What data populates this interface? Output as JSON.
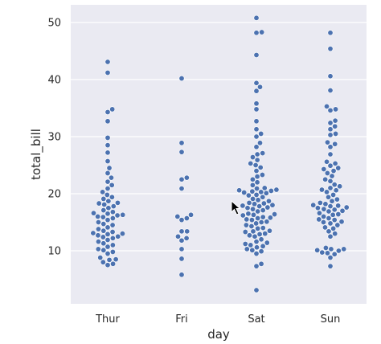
{
  "chart_data": {
    "type": "scatter",
    "subtype": "swarm",
    "style": "seaborn-darkgrid",
    "xlabel": "day",
    "ylabel": "total_bill",
    "categories": [
      "Thur",
      "Fri",
      "Sat",
      "Sun"
    ],
    "ylim": [
      0,
      53
    ],
    "yticks": [
      10,
      20,
      30,
      40,
      50
    ],
    "grid": true,
    "point_color": "#4c72b0",
    "background_color": "#eaeaf2",
    "series": [
      {
        "category": "Thur",
        "values": [
          7.5,
          7.7,
          8.0,
          8.4,
          8.5,
          8.8,
          9.5,
          9.8,
          10.1,
          10.3,
          10.7,
          11.0,
          11.3,
          11.6,
          11.9,
          12.2,
          12.4,
          12.5,
          12.7,
          12.9,
          13.0,
          13.1,
          13.3,
          13.5,
          13.8,
          14.1,
          14.5,
          14.7,
          15.0,
          15.4,
          15.7,
          15.9,
          16.0,
          16.2,
          16.3,
          16.5,
          16.6,
          16.8,
          17.1,
          17.5,
          17.8,
          18.1,
          18.3,
          18.4,
          18.7,
          19.1,
          19.4,
          19.8,
          20.3,
          20.9,
          21.5,
          22.1,
          22.8,
          23.6,
          24.5,
          25.7,
          27.2,
          28.5,
          29.8,
          32.7,
          34.3,
          34.8,
          41.2,
          43.1
        ]
      },
      {
        "category": "Fri",
        "values": [
          5.8,
          8.6,
          10.3,
          11.8,
          12.2,
          12.5,
          13.4,
          13.4,
          15.4,
          15.7,
          16.0,
          16.3,
          20.9,
          22.5,
          22.8,
          27.3,
          28.9,
          40.2
        ]
      },
      {
        "category": "Sat",
        "values": [
          3.1,
          7.3,
          7.7,
          9.5,
          9.9,
          10.1,
          10.3,
          10.6,
          10.8,
          11.0,
          11.2,
          11.4,
          11.6,
          12.0,
          12.5,
          12.7,
          12.9,
          13.0,
          13.3,
          13.4,
          13.5,
          13.9,
          14.0,
          14.3,
          14.5,
          14.8,
          15.0,
          15.1,
          15.4,
          15.5,
          15.7,
          15.8,
          15.9,
          16.2,
          16.3,
          16.4,
          16.5,
          16.9,
          17.1,
          17.3,
          17.5,
          17.6,
          17.8,
          17.9,
          18.0,
          18.2,
          18.3,
          18.4,
          18.7,
          18.9,
          19.1,
          19.4,
          19.7,
          19.8,
          20.1,
          20.2,
          20.3,
          20.4,
          20.5,
          20.6,
          20.7,
          20.9,
          21.0,
          21.5,
          22.0,
          22.5,
          23.0,
          23.3,
          24.0,
          24.6,
          25.0,
          25.3,
          25.9,
          26.4,
          26.9,
          27.1,
          28.2,
          28.9,
          30.0,
          30.5,
          31.3,
          32.7,
          34.8,
          35.8,
          38.0,
          38.7,
          39.4,
          44.3,
          48.2,
          48.3,
          50.8
        ]
      },
      {
        "category": "Sun",
        "values": [
          7.3,
          8.8,
          9.4,
          9.6,
          9.7,
          10.0,
          10.1,
          10.3,
          10.3,
          10.5,
          12.5,
          13.0,
          13.4,
          13.9,
          14.1,
          14.5,
          14.8,
          15.0,
          15.1,
          15.4,
          15.5,
          15.7,
          16.0,
          16.3,
          16.4,
          16.6,
          16.9,
          17.0,
          17.2,
          17.3,
          17.5,
          17.6,
          17.8,
          17.9,
          18.0,
          18.2,
          18.4,
          18.7,
          19.0,
          19.4,
          19.8,
          20.3,
          20.6,
          20.7,
          21.0,
          21.3,
          21.6,
          22.2,
          22.5,
          23.1,
          23.6,
          24.0,
          24.3,
          24.5,
          24.9,
          25.3,
          25.6,
          26.9,
          28.2,
          28.7,
          29.0,
          30.3,
          30.5,
          31.3,
          31.8,
          32.4,
          32.8,
          34.6,
          34.8,
          35.3,
          38.1,
          40.6,
          45.4,
          48.2
        ]
      }
    ]
  }
}
